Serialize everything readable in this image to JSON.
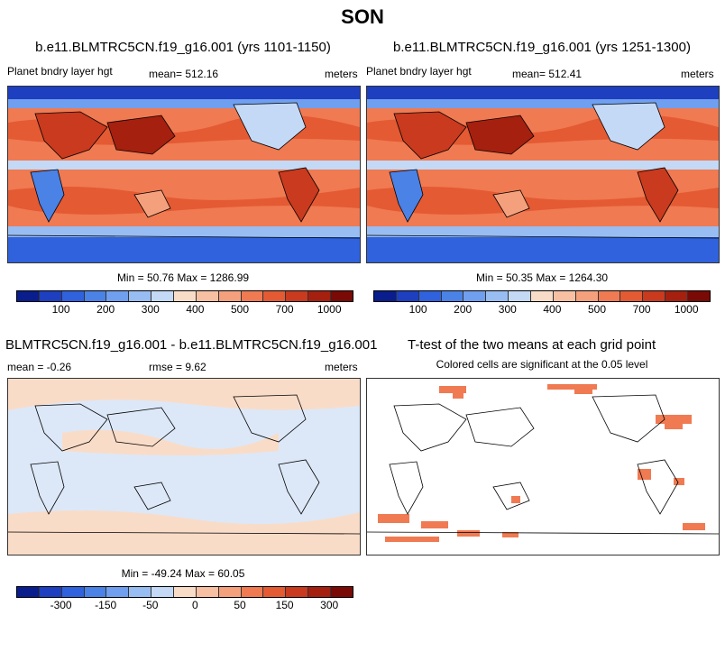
{
  "figure_title": "SON",
  "panels": {
    "top_left": {
      "title": "b.e11.BLMTRC5CN.f19_g16.001 (yrs 1101-1150)",
      "variable": "Planet bndry layer hgt",
      "mean": "mean= 512.16",
      "units": "meters",
      "minmax": "Min =  50.76 Max = 1286.99"
    },
    "top_right": {
      "title": "b.e11.BLMTRC5CN.f19_g16.001 (yrs 1251-1300)",
      "variable": "Planet bndry layer hgt",
      "mean": "mean= 512.41",
      "units": "meters",
      "minmax": "Min =  50.35 Max = 1264.30"
    },
    "bottom_left": {
      "title": "BLMTRC5CN.f19_g16.001 - b.e11.BLMTRC5CN.f19_g16.001",
      "mean": "mean =  -0.26",
      "rmse": "rmse =   9.62",
      "units": "meters",
      "minmax": "Min = -49.24 Max =  60.05"
    },
    "bottom_right": {
      "title": "T-test of the two means at each grid point",
      "subtitle": "Colored cells are significant at the 0.05 level"
    }
  },
  "colorbar_abs": {
    "colors": [
      "#0a1d8c",
      "#1d3fc0",
      "#2f62dc",
      "#4a82e6",
      "#6f9fee",
      "#98bdf2",
      "#c3d9f6",
      "#f9dcc8",
      "#f8c0a2",
      "#f5a07c",
      "#f07a52",
      "#e45a33",
      "#c93a1e",
      "#a5200f",
      "#7a0a05"
    ],
    "labels": [
      "100",
      "200",
      "300",
      "400",
      "500",
      "700",
      "1000"
    ]
  },
  "colorbar_diff": {
    "colors": [
      "#0a1d8c",
      "#1d3fc0",
      "#2f62dc",
      "#4a82e6",
      "#6f9fee",
      "#98bdf2",
      "#c3d9f6",
      "#f9dcc8",
      "#f8c0a2",
      "#f5a07c",
      "#f07a52",
      "#e45a33",
      "#c93a1e",
      "#a5200f",
      "#7a0a05"
    ],
    "labels": [
      "-300",
      "-150",
      "-50",
      "0",
      "50",
      "150",
      "300"
    ]
  }
}
